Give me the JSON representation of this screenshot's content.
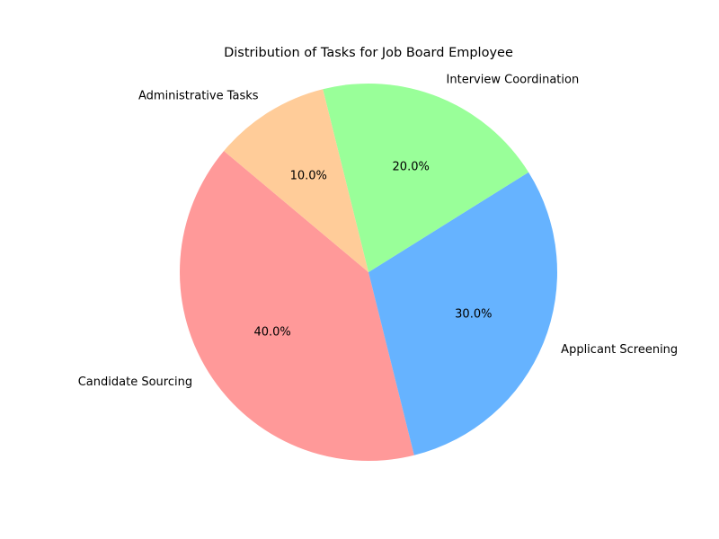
{
  "chart_data": {
    "type": "pie",
    "title": "Distribution of Tasks for Job Board Employee",
    "categories": [
      "Candidate Sourcing",
      "Applicant Screening",
      "Interview Coordination",
      "Administrative Tasks"
    ],
    "values": [
      40,
      30,
      20,
      10
    ],
    "percent_labels": [
      "40.0%",
      "30.0%",
      "20.0%",
      "10.0%"
    ],
    "colors": [
      "#ff9999",
      "#66b3ff",
      "#99ff99",
      "#ffcc99"
    ],
    "start_angle_deg": 140,
    "direction": "counterclockwise"
  }
}
